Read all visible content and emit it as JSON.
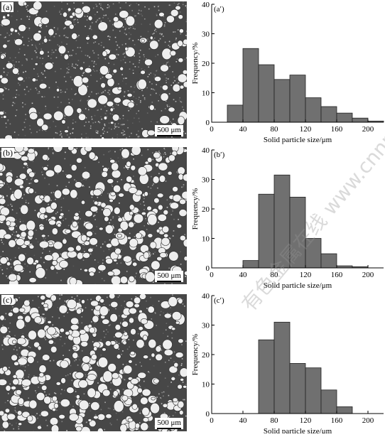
{
  "figure": {
    "panels": [
      {
        "tag": "(a)",
        "scale": "500 μm",
        "seed": 11,
        "style": "dispersed"
      },
      {
        "tag": "(b)",
        "scale": "500 μm",
        "seed": 23,
        "style": "dense"
      },
      {
        "tag": "(c)",
        "scale": "500 μm",
        "seed": 37,
        "style": "dense"
      }
    ],
    "watermark": "有色金属在线 www.cnnmol.com"
  },
  "chart_data": [
    {
      "type": "bar",
      "panel_label": "(a′)",
      "xlabel": "Solid particle size/μm",
      "ylabel": "Frequency/%",
      "x": [
        30,
        50,
        70,
        90,
        110,
        130,
        150,
        170,
        190,
        210
      ],
      "values": [
        5.8,
        25,
        19.5,
        14.5,
        16,
        8.3,
        5.3,
        3.1,
        1.4,
        0.4
      ],
      "xlim": [
        0,
        220
      ],
      "ylim": [
        0,
        40
      ],
      "xticks": [
        0,
        40,
        80,
        120,
        160,
        200
      ],
      "yticks": [
        0,
        10,
        20,
        30,
        40
      ],
      "bar_color": "#707070"
    },
    {
      "type": "bar",
      "panel_label": "(b′)",
      "xlabel": "Solid particle size/μm",
      "ylabel": "Frequency/%",
      "x": [
        50,
        70,
        90,
        110,
        130,
        150,
        170,
        190
      ],
      "values": [
        2.5,
        25,
        31.5,
        24,
        10,
        4.8,
        0.7,
        0.4
      ],
      "xlim": [
        0,
        220
      ],
      "ylim": [
        0,
        40
      ],
      "xticks": [
        0,
        40,
        80,
        120,
        160,
        200
      ],
      "yticks": [
        0,
        10,
        20,
        30,
        40
      ],
      "bar_color": "#707070"
    },
    {
      "type": "bar",
      "panel_label": "(c′)",
      "xlabel": "Solid particle size/μm",
      "ylabel": "Frequency/%",
      "x": [
        70,
        90,
        110,
        130,
        150,
        170
      ],
      "values": [
        25,
        31,
        17,
        15.5,
        8,
        2.3
      ],
      "xlim": [
        0,
        220
      ],
      "ylim": [
        0,
        40
      ],
      "xticks": [
        0,
        40,
        80,
        120,
        160,
        200
      ],
      "yticks": [
        0,
        10,
        20,
        30,
        40
      ],
      "bar_color": "#707070"
    }
  ]
}
